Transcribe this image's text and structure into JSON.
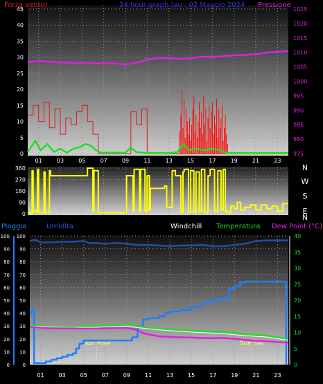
{
  "title": "24 hour graph (au : 02 Maggio 2024",
  "colors": {
    "background": "#000000",
    "wind": "#e01818",
    "wind_label": "#dd1e1e",
    "gust": "#ff0000",
    "pressure": "#dd22dd",
    "direction": "#ffff00",
    "rain": "#1e7fff",
    "humidity": "#1f4fa5",
    "humidity_label": "#2a50d0",
    "temperature": "#22dd22",
    "dewpoint": "#e020e0",
    "windchill": "#ffffff",
    "sun_marker": "#ffff66",
    "grid": "#999999",
    "title": "#3535dd"
  },
  "chart_data": [
    {
      "type": "line",
      "id": "wind-pressure",
      "title": "24 hour graph (au : 02 Maggio 2024",
      "left_label": "Forza vento)",
      "right_label": "Pressione",
      "x_ticks": [
        "01",
        "03",
        "05",
        "07",
        "09",
        "11",
        "13",
        "15",
        "17",
        "19",
        "21",
        "23"
      ],
      "xlim": [
        0,
        24
      ],
      "ylim_left": [
        0,
        45
      ],
      "y_ticks_left": [
        "0",
        "5",
        "10",
        "15",
        "20",
        "25",
        "30",
        "35",
        "40",
        "45"
      ],
      "ylim_right": [
        975,
        1025
      ],
      "y_ticks_right": [
        "975",
        "980",
        "985",
        "990",
        "995",
        "1000",
        "1005",
        "1010",
        "1015",
        "1020",
        "1025"
      ],
      "grid": true,
      "series": [
        {
          "key": "pressure",
          "axis": "right",
          "x": [
            0,
            1,
            2,
            3,
            4,
            5,
            6,
            7,
            8,
            9,
            10,
            11,
            12,
            13,
            14,
            15,
            16,
            17,
            18,
            19,
            20,
            21,
            22,
            23,
            24
          ],
          "y": [
            1006.5,
            1007,
            1006.8,
            1006.5,
            1006.4,
            1006.3,
            1006.2,
            1006.2,
            1006.2,
            1005.8,
            1006.4,
            1007.5,
            1008,
            1008,
            1007.7,
            1007.9,
            1008.5,
            1008.4,
            1008.7,
            1009,
            1009.1,
            1009.4,
            1009.9,
            1010.2,
            1010.5
          ]
        },
        {
          "key": "wind",
          "axis": "left",
          "type": "step",
          "x": [
            0,
            0.5,
            1,
            1.5,
            2,
            2.5,
            3,
            3.5,
            4,
            4.5,
            5,
            5.5,
            6,
            6.5,
            7,
            7.5,
            8,
            8.5,
            9,
            9.5,
            10,
            10.5,
            11,
            11.5,
            12,
            12.5,
            13,
            13.5,
            14,
            14.5,
            15,
            15.5,
            16,
            16.5,
            17,
            17.5,
            18,
            18.5,
            19,
            19.5,
            20,
            20.5,
            21,
            21.5,
            22,
            22.5,
            23,
            23.5,
            24
          ],
          "y": [
            12,
            15,
            10,
            16,
            8,
            14,
            6,
            11,
            9,
            13,
            15,
            10,
            6,
            0,
            0,
            0,
            0,
            0,
            0,
            13,
            9,
            14,
            0,
            0,
            0,
            0,
            0,
            0,
            0,
            0,
            0,
            0,
            0,
            0,
            0,
            0,
            0,
            0,
            0,
            0,
            0,
            0,
            0,
            0,
            0,
            0,
            0,
            0,
            0
          ]
        },
        {
          "key": "gust",
          "axis": "left",
          "type": "spikes",
          "x": [
            14,
            14.1,
            14.2,
            14.3,
            14.4,
            14.5,
            14.6,
            14.7,
            14.8,
            14.9,
            15,
            15.1,
            15.2,
            15.3,
            15.4,
            15.5,
            15.6,
            15.7,
            15.8,
            15.9,
            16,
            16.1,
            16.2,
            16.3,
            16.4,
            16.5,
            16.6,
            16.7,
            16.8,
            16.9,
            17,
            17.1,
            17.2,
            17.3,
            17.4,
            17.5,
            17.6,
            17.7,
            17.8,
            17.9,
            18,
            18.1,
            18.2,
            18.3,
            18.4,
            18.5
          ],
          "y": [
            7,
            12,
            20,
            8,
            17,
            5,
            14,
            10,
            6,
            11,
            4,
            9,
            14,
            18,
            7,
            12,
            5,
            10,
            16,
            8,
            13,
            6,
            18,
            9,
            14,
            4,
            11,
            15,
            8,
            13,
            16,
            6,
            12,
            9,
            17,
            5,
            14,
            8,
            11,
            15,
            4,
            8,
            12,
            6,
            3,
            0
          ]
        },
        {
          "key": "wind_avg",
          "axis": "left",
          "x": [
            0,
            0.7,
            1.2,
            1.8,
            2.4,
            3,
            3.6,
            4.2,
            4.8,
            5.3,
            5.8,
            6.3,
            6.8,
            9,
            9.5,
            10,
            11,
            13,
            13.8,
            14.3,
            14.8,
            15.5,
            16.2,
            17,
            17.6,
            18.3,
            24
          ],
          "y": [
            0.5,
            4,
            1,
            3,
            0.5,
            1.5,
            0.3,
            1.5,
            2,
            3,
            2.5,
            1,
            0.3,
            0.3,
            1.8,
            0.5,
            0.2,
            0.2,
            0.5,
            3,
            1,
            1.5,
            1,
            1.5,
            1.2,
            0.2,
            0.2
          ]
        }
      ]
    },
    {
      "type": "line",
      "id": "wind-direction",
      "x_ticks": [
        "01",
        "03",
        "05",
        "07",
        "09",
        "11",
        "13",
        "15",
        "17",
        "19",
        "21",
        "23"
      ],
      "xlim": [
        0,
        24
      ],
      "ylim": [
        0,
        360
      ],
      "y_ticks": [
        "0",
        "90",
        "180",
        "270",
        "360"
      ],
      "compass_labels": [
        "N",
        "W",
        "S",
        "E",
        "N"
      ],
      "grid": true,
      "series": [
        {
          "key": "direction",
          "x": [
            0,
            0.4,
            0.5,
            0.9,
            1.0,
            1.5,
            1.6,
            2.0,
            2.1,
            5.4,
            5.5,
            6.0,
            6.1,
            6.5,
            6.7,
            7.5,
            9.0,
            9.1,
            9.7,
            9.8,
            10.3,
            10.4,
            10.8,
            11.0,
            11.2,
            11.3,
            12.6,
            12.8,
            13.3,
            13.6,
            14.1,
            14.3,
            14.4,
            14.8,
            15.0,
            15.3,
            15.5,
            15.8,
            16.0,
            16.3,
            16.6,
            16.8,
            17.2,
            17.5,
            17.8,
            18.0,
            18.2,
            18.4,
            18.7,
            19.0,
            19.3,
            19.6,
            20.0,
            20.5,
            21.0,
            21.5,
            22.0,
            22.5,
            23.0,
            23.5,
            24.0
          ],
          "y": [
            5,
            340,
            20,
            350,
            10,
            330,
            10,
            340,
            300,
            300,
            360,
            20,
            340,
            10,
            10,
            10,
            10,
            300,
            20,
            350,
            20,
            350,
            20,
            300,
            30,
            200,
            220,
            50,
            340,
            300,
            10,
            330,
            350,
            10,
            340,
            10,
            330,
            20,
            350,
            10,
            300,
            350,
            20,
            340,
            30,
            350,
            20,
            10,
            60,
            40,
            90,
            30,
            50,
            70,
            30,
            70,
            40,
            60,
            20,
            80,
            80
          ]
        }
      ]
    },
    {
      "type": "line",
      "id": "rain-temp",
      "labels": {
        "rain": "Pioggia",
        "humidity": "Umidita",
        "windchill": "Windchill",
        "temperature": "Temperatura",
        "dewpoint": "Dew Point (°C)"
      },
      "x_ticks": [
        "01",
        "03",
        "05",
        "07",
        "09",
        "11",
        "13",
        "15",
        "17",
        "19",
        "21",
        "23"
      ],
      "xlim": [
        0,
        24
      ],
      "ylim_left": [
        0,
        100
      ],
      "y_ticks_left": [
        "0",
        "10",
        "20",
        "30",
        "40",
        "50",
        "60",
        "70",
        "80",
        "90",
        "100"
      ],
      "ylim_right": [
        0,
        40
      ],
      "y_ticks_right": [
        "0",
        "5",
        "10",
        "15",
        "20",
        "25",
        "30",
        "35",
        "40"
      ],
      "grid": true,
      "annotations": [
        {
          "text": "Sun Rise",
          "x": 6.2
        },
        {
          "text": "Sun Set",
          "x": 20.6
        }
      ],
      "series": [
        {
          "key": "humidity",
          "axis": "left",
          "x": [
            0,
            0.5,
            1,
            2,
            3,
            4,
            5,
            5.5,
            6,
            7,
            8,
            9,
            10,
            11,
            12,
            13,
            14,
            15,
            16,
            17,
            18,
            19,
            20,
            21,
            22,
            23,
            24
          ],
          "y": [
            96,
            97,
            95,
            95,
            95.5,
            95.5,
            96,
            94.5,
            94.5,
            94,
            94.5,
            94,
            93,
            93,
            92.5,
            92,
            92.5,
            92.5,
            93,
            92,
            92,
            93,
            94,
            96,
            96.5,
            96.5,
            96.5
          ]
        },
        {
          "key": "rain",
          "axis": "right",
          "type": "step",
          "x": [
            0,
            0.2,
            0.4,
            1.0,
            1.5,
            2.0,
            2.5,
            3.0,
            3.5,
            4.0,
            4.3,
            4.6,
            5.0,
            9.0,
            9.5,
            10.0,
            10.5,
            11.0,
            12.0,
            12.5,
            13.0,
            14.0,
            15.0,
            16.0,
            16.5,
            17.0,
            17.5,
            18.0,
            18.5,
            19.0,
            19.5,
            20.0,
            21.0,
            22.0,
            23.0,
            23.7,
            23.8
          ],
          "y": [
            16,
            17,
            0.5,
            0.5,
            1,
            1.5,
            2,
            2.5,
            3,
            3.5,
            5,
            6.5,
            7.5,
            7.5,
            8.5,
            12,
            14,
            14.5,
            15,
            16,
            16.5,
            17,
            18,
            19,
            19.5,
            20,
            20.5,
            20.5,
            23.5,
            24.5,
            25.5,
            25.8,
            25.8,
            25.8,
            25.8,
            25.8,
            0
          ]
        },
        {
          "key": "temperature",
          "axis": "right",
          "x": [
            0,
            1,
            2,
            3,
            4,
            5,
            6,
            7,
            8,
            9,
            9.5,
            10,
            10.5,
            11,
            12,
            13,
            14,
            15,
            16,
            17,
            18,
            19,
            20,
            21,
            22,
            23,
            24
          ],
          "y": [
            12.3,
            12.0,
            11.8,
            11.8,
            11.9,
            12.0,
            12.0,
            12.0,
            12.3,
            12.4,
            12.8,
            12.0,
            11.8,
            11.4,
            11.2,
            11.0,
            10.9,
            10.6,
            10.4,
            10.3,
            10.2,
            10.0,
            9.5,
            9.2,
            9.0,
            8.5,
            7.9
          ]
        },
        {
          "key": "windchill",
          "axis": "right",
          "x": [
            0,
            3,
            6,
            9,
            10,
            12,
            15,
            17,
            18,
            20,
            22,
            24
          ],
          "y": [
            12.0,
            11.6,
            11.6,
            12.0,
            11.5,
            10.8,
            10.1,
            9.8,
            9.6,
            9.0,
            8.6,
            7.6
          ]
        },
        {
          "key": "dewpoint",
          "axis": "right",
          "x": [
            0,
            1,
            2,
            3,
            4,
            5,
            6,
            7,
            8,
            9,
            10,
            10.5,
            11,
            12,
            13,
            14,
            15,
            16,
            17,
            18,
            19,
            20,
            21,
            22,
            23,
            24
          ],
          "y": [
            11.8,
            11.5,
            11.3,
            11.3,
            11.3,
            11.2,
            11.2,
            11.3,
            11.4,
            11.4,
            10.8,
            9.8,
            9.4,
            8.8,
            8.6,
            8.5,
            8.4,
            8.3,
            8.2,
            8.3,
            8.0,
            7.7,
            7.4,
            7.3,
            7.0,
            6.8
          ]
        }
      ]
    }
  ]
}
